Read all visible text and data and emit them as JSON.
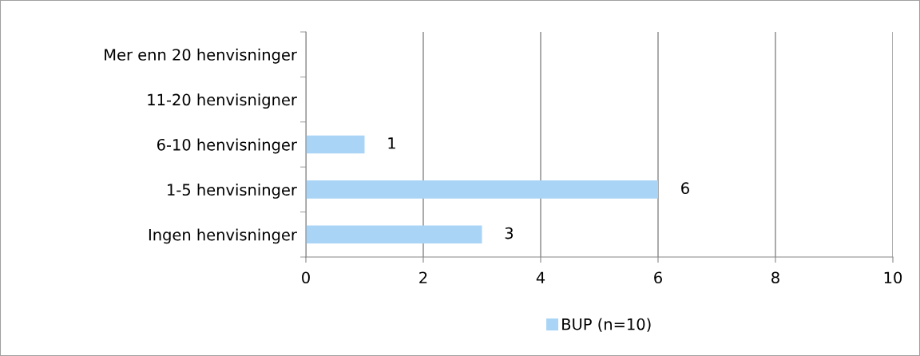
{
  "chart_data": {
    "type": "bar",
    "orientation": "horizontal",
    "categories": [
      "Mer enn 20 henvisninger",
      "11-20 henvisnigner",
      "6-10 henvisninger",
      "1-5 henvisninger",
      "Ingen henvisninger"
    ],
    "series": [
      {
        "name": "BUP (n=10)",
        "color": "#a9d4f5",
        "values": [
          0,
          0,
          1,
          6,
          3
        ],
        "value_labels": [
          null,
          null,
          "1",
          "6",
          "3"
        ]
      }
    ],
    "xlim": [
      0,
      10
    ],
    "xticks": [
      0,
      2,
      4,
      6,
      8,
      10
    ],
    "grid": "x",
    "legend": "bottom"
  }
}
